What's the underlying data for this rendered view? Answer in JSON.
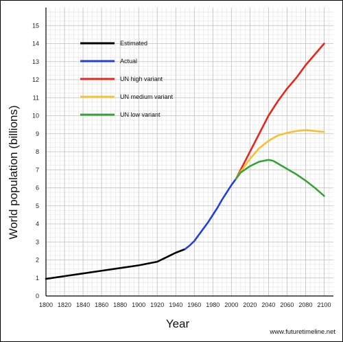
{
  "chart_data": {
    "type": "line",
    "title": "",
    "xlabel": "Year",
    "ylabel": "World population (billions)",
    "xlim": [
      1800,
      2110
    ],
    "ylim": [
      0,
      16
    ],
    "x_ticks": [
      1800,
      1820,
      1840,
      1860,
      1880,
      1900,
      1920,
      1940,
      1960,
      1980,
      2000,
      2020,
      2040,
      2060,
      2080,
      2100
    ],
    "y_ticks": [
      0,
      1,
      2,
      3,
      4,
      5,
      6,
      7,
      8,
      9,
      10,
      11,
      12,
      13,
      14,
      15
    ],
    "grid": true,
    "legend_position": "top-left",
    "source": "www.futuretimeline.net",
    "series": [
      {
        "name": "Estimated",
        "color": "#000000",
        "points": [
          [
            1800,
            0.95
          ],
          [
            1820,
            1.1
          ],
          [
            1840,
            1.25
          ],
          [
            1860,
            1.4
          ],
          [
            1880,
            1.55
          ],
          [
            1900,
            1.7
          ],
          [
            1920,
            1.9
          ],
          [
            1930,
            2.15
          ],
          [
            1940,
            2.4
          ],
          [
            1950,
            2.6
          ]
        ]
      },
      {
        "name": "Actual",
        "color": "#1f3fe0",
        "points": [
          [
            1950,
            2.6
          ],
          [
            1955,
            2.8
          ],
          [
            1960,
            3.05
          ],
          [
            1965,
            3.4
          ],
          [
            1970,
            3.75
          ],
          [
            1975,
            4.1
          ],
          [
            1980,
            4.5
          ],
          [
            1985,
            4.9
          ],
          [
            1990,
            5.35
          ],
          [
            1995,
            5.75
          ],
          [
            2000,
            6.15
          ],
          [
            2005,
            6.5
          ]
        ]
      },
      {
        "name": "UN high variant",
        "color": "#e8241b",
        "points": [
          [
            2005,
            6.5
          ],
          [
            2010,
            7.0
          ],
          [
            2020,
            8.0
          ],
          [
            2030,
            9.0
          ],
          [
            2040,
            10.0
          ],
          [
            2050,
            10.8
          ],
          [
            2060,
            11.5
          ],
          [
            2070,
            12.1
          ],
          [
            2080,
            12.8
          ],
          [
            2090,
            13.4
          ],
          [
            2100,
            14.0
          ]
        ]
      },
      {
        "name": "UN medium variant",
        "color": "#f5c12e",
        "points": [
          [
            2005,
            6.5
          ],
          [
            2010,
            6.9
          ],
          [
            2020,
            7.6
          ],
          [
            2030,
            8.2
          ],
          [
            2040,
            8.6
          ],
          [
            2050,
            8.9
          ],
          [
            2060,
            9.05
          ],
          [
            2070,
            9.15
          ],
          [
            2080,
            9.2
          ],
          [
            2090,
            9.15
          ],
          [
            2100,
            9.1
          ]
        ]
      },
      {
        "name": "UN low variant",
        "color": "#36a335",
        "points": [
          [
            2005,
            6.5
          ],
          [
            2010,
            6.85
          ],
          [
            2020,
            7.2
          ],
          [
            2030,
            7.45
          ],
          [
            2040,
            7.55
          ],
          [
            2045,
            7.5
          ],
          [
            2050,
            7.35
          ],
          [
            2060,
            7.05
          ],
          [
            2070,
            6.75
          ],
          [
            2080,
            6.4
          ],
          [
            2090,
            6.0
          ],
          [
            2100,
            5.55
          ]
        ]
      }
    ]
  }
}
